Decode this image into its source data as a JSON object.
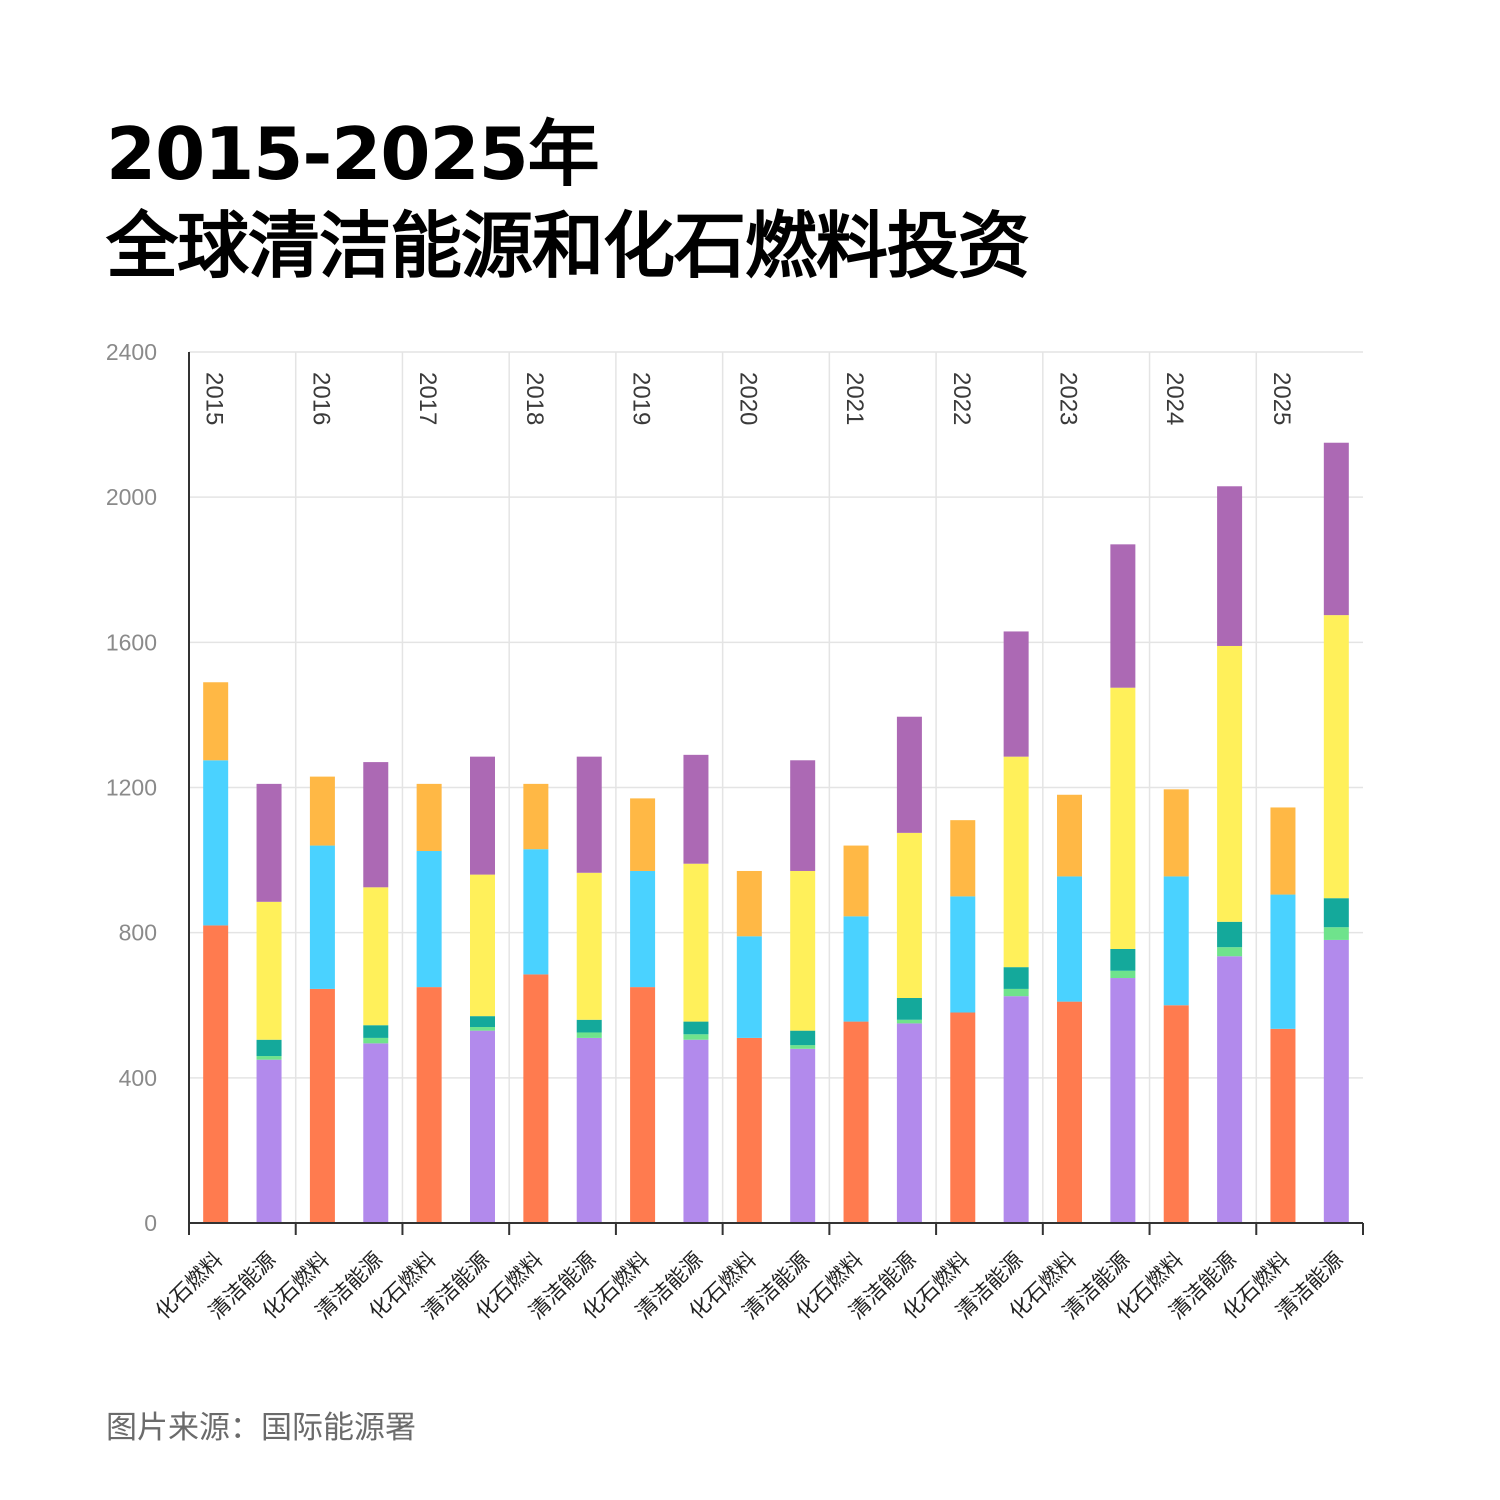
{
  "title": {
    "line1": "2015-2025年",
    "line2": "全球清洁能源和化石燃料投资"
  },
  "source": "图片来源：国际能源署",
  "chart_data": {
    "type": "bar",
    "stacked": true,
    "ylim": [
      0,
      2400
    ],
    "yticks": [
      0,
      400,
      800,
      1200,
      1600,
      2000,
      2400
    ],
    "grid": true,
    "groups": [
      "2015",
      "2016",
      "2017",
      "2018",
      "2019",
      "2020",
      "2021",
      "2022",
      "2023",
      "2024",
      "2025"
    ],
    "categories": [
      "化石燃料",
      "清洁能源"
    ],
    "bars": [
      {
        "year": "2015",
        "category": "化石燃料",
        "segments": [
          {
            "value": 820,
            "color": "#ff7b4f"
          },
          {
            "value": 455,
            "color": "#4ad2ff"
          },
          {
            "value": 215,
            "color": "#ffb845"
          }
        ]
      },
      {
        "year": "2015",
        "category": "清洁能源",
        "segments": [
          {
            "value": 450,
            "color": "#b28aec"
          },
          {
            "value": 10,
            "color": "#6fe38c"
          },
          {
            "value": 45,
            "color": "#14a99b"
          },
          {
            "value": 380,
            "color": "#fff05a"
          },
          {
            "value": 325,
            "color": "#ac69b4"
          }
        ]
      },
      {
        "year": "2016",
        "category": "化石燃料",
        "segments": [
          {
            "value": 645,
            "color": "#ff7b4f"
          },
          {
            "value": 395,
            "color": "#4ad2ff"
          },
          {
            "value": 190,
            "color": "#ffb845"
          }
        ]
      },
      {
        "year": "2016",
        "category": "清洁能源",
        "segments": [
          {
            "value": 495,
            "color": "#b28aec"
          },
          {
            "value": 15,
            "color": "#6fe38c"
          },
          {
            "value": 35,
            "color": "#14a99b"
          },
          {
            "value": 380,
            "color": "#fff05a"
          },
          {
            "value": 345,
            "color": "#ac69b4"
          }
        ]
      },
      {
        "year": "2017",
        "category": "化石燃料",
        "segments": [
          {
            "value": 650,
            "color": "#ff7b4f"
          },
          {
            "value": 375,
            "color": "#4ad2ff"
          },
          {
            "value": 185,
            "color": "#ffb845"
          }
        ]
      },
      {
        "year": "2017",
        "category": "清洁能源",
        "segments": [
          {
            "value": 530,
            "color": "#b28aec"
          },
          {
            "value": 10,
            "color": "#6fe38c"
          },
          {
            "value": 30,
            "color": "#14a99b"
          },
          {
            "value": 390,
            "color": "#fff05a"
          },
          {
            "value": 325,
            "color": "#ac69b4"
          }
        ]
      },
      {
        "year": "2018",
        "category": "化石燃料",
        "segments": [
          {
            "value": 685,
            "color": "#ff7b4f"
          },
          {
            "value": 345,
            "color": "#4ad2ff"
          },
          {
            "value": 180,
            "color": "#ffb845"
          }
        ]
      },
      {
        "year": "2018",
        "category": "清洁能源",
        "segments": [
          {
            "value": 510,
            "color": "#b28aec"
          },
          {
            "value": 15,
            "color": "#6fe38c"
          },
          {
            "value": 35,
            "color": "#14a99b"
          },
          {
            "value": 405,
            "color": "#fff05a"
          },
          {
            "value": 320,
            "color": "#ac69b4"
          }
        ]
      },
      {
        "year": "2019",
        "category": "化石燃料",
        "segments": [
          {
            "value": 650,
            "color": "#ff7b4f"
          },
          {
            "value": 320,
            "color": "#4ad2ff"
          },
          {
            "value": 200,
            "color": "#ffb845"
          }
        ]
      },
      {
        "year": "2019",
        "category": "清洁能源",
        "segments": [
          {
            "value": 505,
            "color": "#b28aec"
          },
          {
            "value": 15,
            "color": "#6fe38c"
          },
          {
            "value": 35,
            "color": "#14a99b"
          },
          {
            "value": 435,
            "color": "#fff05a"
          },
          {
            "value": 300,
            "color": "#ac69b4"
          }
        ]
      },
      {
        "year": "2020",
        "category": "化石燃料",
        "segments": [
          {
            "value": 510,
            "color": "#ff7b4f"
          },
          {
            "value": 280,
            "color": "#4ad2ff"
          },
          {
            "value": 180,
            "color": "#ffb845"
          }
        ]
      },
      {
        "year": "2020",
        "category": "清洁能源",
        "segments": [
          {
            "value": 480,
            "color": "#b28aec"
          },
          {
            "value": 10,
            "color": "#6fe38c"
          },
          {
            "value": 40,
            "color": "#14a99b"
          },
          {
            "value": 440,
            "color": "#fff05a"
          },
          {
            "value": 305,
            "color": "#ac69b4"
          }
        ]
      },
      {
        "year": "2021",
        "category": "化石燃料",
        "segments": [
          {
            "value": 555,
            "color": "#ff7b4f"
          },
          {
            "value": 290,
            "color": "#4ad2ff"
          },
          {
            "value": 195,
            "color": "#ffb845"
          }
        ]
      },
      {
        "year": "2021",
        "category": "清洁能源",
        "segments": [
          {
            "value": 550,
            "color": "#b28aec"
          },
          {
            "value": 10,
            "color": "#6fe38c"
          },
          {
            "value": 60,
            "color": "#14a99b"
          },
          {
            "value": 455,
            "color": "#fff05a"
          },
          {
            "value": 320,
            "color": "#ac69b4"
          }
        ]
      },
      {
        "year": "2022",
        "category": "化石燃料",
        "segments": [
          {
            "value": 580,
            "color": "#ff7b4f"
          },
          {
            "value": 320,
            "color": "#4ad2ff"
          },
          {
            "value": 210,
            "color": "#ffb845"
          }
        ]
      },
      {
        "year": "2022",
        "category": "清洁能源",
        "segments": [
          {
            "value": 625,
            "color": "#b28aec"
          },
          {
            "value": 20,
            "color": "#6fe38c"
          },
          {
            "value": 60,
            "color": "#14a99b"
          },
          {
            "value": 580,
            "color": "#fff05a"
          },
          {
            "value": 345,
            "color": "#ac69b4"
          }
        ]
      },
      {
        "year": "2023",
        "category": "化石燃料",
        "segments": [
          {
            "value": 610,
            "color": "#ff7b4f"
          },
          {
            "value": 345,
            "color": "#4ad2ff"
          },
          {
            "value": 225,
            "color": "#ffb845"
          }
        ]
      },
      {
        "year": "2023",
        "category": "清洁能源",
        "segments": [
          {
            "value": 675,
            "color": "#b28aec"
          },
          {
            "value": 20,
            "color": "#6fe38c"
          },
          {
            "value": 60,
            "color": "#14a99b"
          },
          {
            "value": 720,
            "color": "#fff05a"
          },
          {
            "value": 395,
            "color": "#ac69b4"
          }
        ]
      },
      {
        "year": "2024",
        "category": "化石燃料",
        "segments": [
          {
            "value": 600,
            "color": "#ff7b4f"
          },
          {
            "value": 355,
            "color": "#4ad2ff"
          },
          {
            "value": 240,
            "color": "#ffb845"
          }
        ]
      },
      {
        "year": "2024",
        "category": "清洁能源",
        "segments": [
          {
            "value": 735,
            "color": "#b28aec"
          },
          {
            "value": 25,
            "color": "#6fe38c"
          },
          {
            "value": 70,
            "color": "#14a99b"
          },
          {
            "value": 760,
            "color": "#fff05a"
          },
          {
            "value": 440,
            "color": "#ac69b4"
          }
        ]
      },
      {
        "year": "2025",
        "category": "化石燃料",
        "segments": [
          {
            "value": 535,
            "color": "#ff7b4f"
          },
          {
            "value": 370,
            "color": "#4ad2ff"
          },
          {
            "value": 240,
            "color": "#ffb845"
          }
        ]
      },
      {
        "year": "2025",
        "category": "清洁能源",
        "segments": [
          {
            "value": 780,
            "color": "#b28aec"
          },
          {
            "value": 35,
            "color": "#6fe38c"
          },
          {
            "value": 80,
            "color": "#14a99b"
          },
          {
            "value": 780,
            "color": "#fff05a"
          },
          {
            "value": 475,
            "color": "#ac69b4"
          }
        ]
      }
    ]
  }
}
